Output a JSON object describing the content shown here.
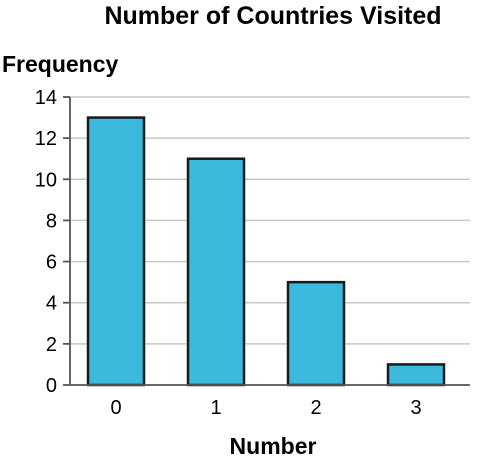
{
  "chart_data": {
    "type": "bar",
    "title": "Number of Countries Visited",
    "xlabel": "Number",
    "ylabel": "Frequency",
    "categories": [
      "0",
      "1",
      "2",
      "3"
    ],
    "values": [
      13,
      11,
      5,
      1
    ],
    "ylim": [
      0,
      14
    ],
    "yticks": [
      0,
      2,
      4,
      6,
      8,
      10,
      12,
      14
    ],
    "grid": true,
    "bar_color": "#3bb9dc",
    "bar_edge_color": "#1a1a1a",
    "grid_color": "#c8c8c8"
  }
}
